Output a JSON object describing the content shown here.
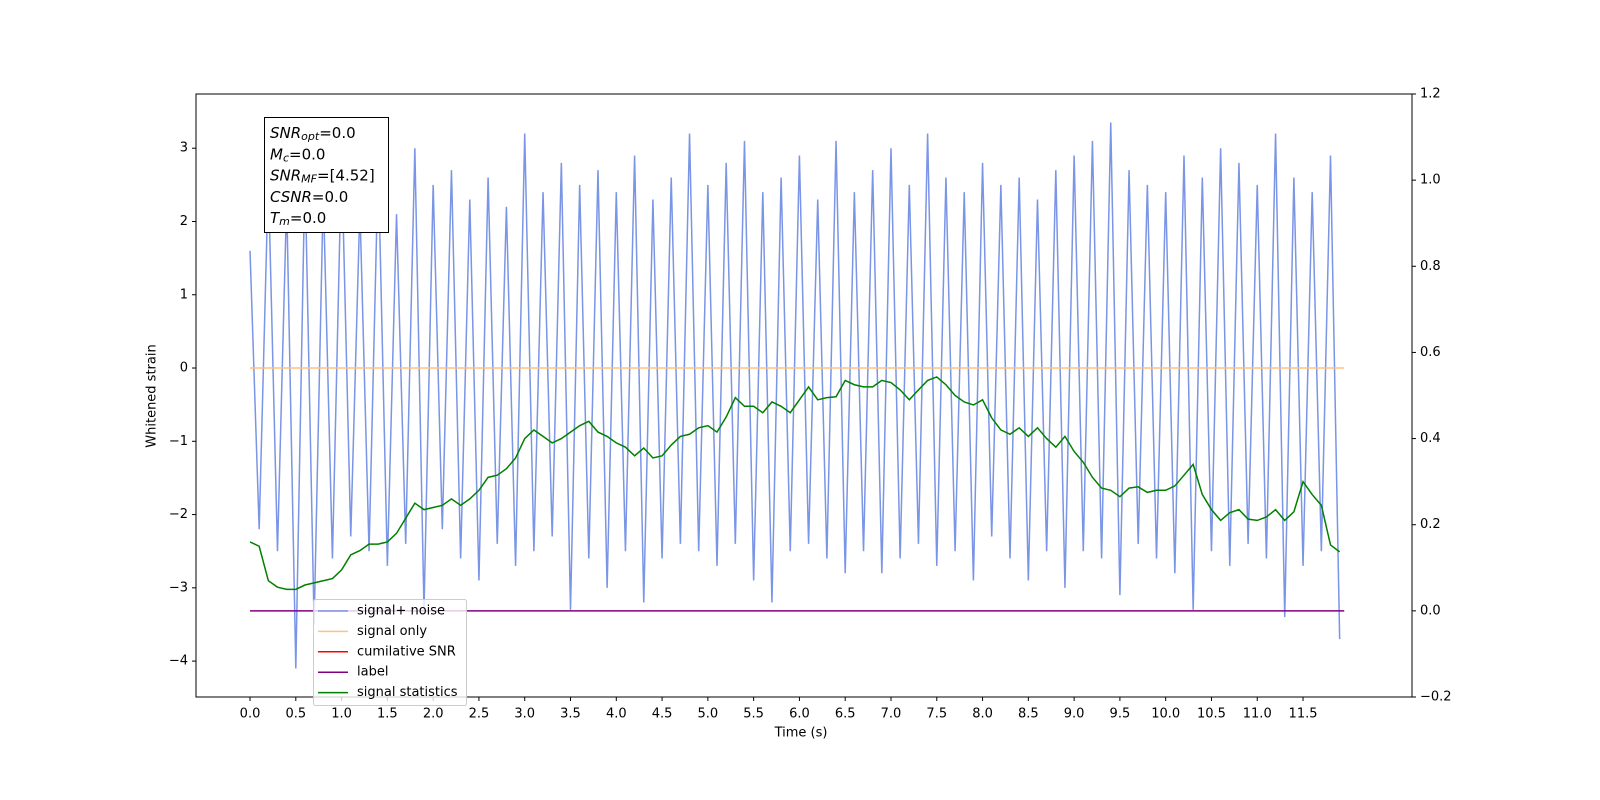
{
  "chart_data": {
    "type": "line",
    "x_label": "Time (s)",
    "y_label": "Whitened strain",
    "xlim": [
      -0.59,
      12.69
    ],
    "ylim": [
      -4.49,
      3.74
    ],
    "y2lim": [
      -0.2,
      1.2
    ],
    "xticks": [
      {
        "value": 0,
        "label": "0.0"
      },
      0.5,
      {
        "value": 1,
        "label": "1.0"
      },
      1.5,
      {
        "value": 2,
        "label": "2.0"
      },
      2.5,
      {
        "value": 3,
        "label": "3.0"
      },
      3.5,
      {
        "value": 4,
        "label": "4.0"
      },
      4.5,
      {
        "value": 5,
        "label": "5.0"
      },
      5.5,
      {
        "value": 6,
        "label": "6.0"
      },
      6.5,
      {
        "value": 7,
        "label": "7.0"
      },
      7.5,
      {
        "value": 8,
        "label": "8.0"
      },
      8.5,
      {
        "value": 9,
        "label": "9.0"
      },
      9.5,
      {
        "value": 10,
        "label": "10.0"
      },
      10.5,
      {
        "value": 11,
        "label": "11.0"
      },
      11.5
    ],
    "yticks": [
      {
        "value": -4,
        "label": "−4"
      },
      {
        "value": -3,
        "label": "−3"
      },
      {
        "value": -2,
        "label": "−2"
      },
      {
        "value": -1,
        "label": "−1"
      },
      0,
      1,
      2,
      3
    ],
    "y2ticks": [
      {
        "value": -0.2,
        "label": "−0.2"
      },
      {
        "value": 0,
        "label": "0.0"
      },
      0.2,
      0.4,
      0.6,
      0.8,
      {
        "value": 1,
        "label": "1.0"
      },
      1.2
    ],
    "x": [
      0,
      0.1,
      0.2,
      0.3,
      0.4,
      0.5,
      0.6,
      0.7,
      0.8,
      0.9,
      1,
      1.1,
      1.2,
      1.3,
      1.4,
      1.5,
      1.6,
      1.7,
      1.8,
      1.9,
      2,
      2.1,
      2.2,
      2.3,
      2.4,
      2.5,
      2.6,
      2.7,
      2.8,
      2.9,
      3,
      3.1,
      3.2,
      3.3,
      3.4,
      3.5,
      3.6,
      3.7,
      3.8,
      3.9,
      4,
      4.1,
      4.2,
      4.3,
      4.4,
      4.5,
      4.6,
      4.7,
      4.8,
      4.9,
      5,
      5.1,
      5.2,
      5.3,
      5.4,
      5.5,
      5.6,
      5.7,
      5.8,
      5.9,
      6,
      6.1,
      6.2,
      6.3,
      6.4,
      6.5,
      6.6,
      6.7,
      6.8,
      6.9,
      7,
      7.1,
      7.2,
      7.3,
      7.4,
      7.5,
      7.6,
      7.7,
      7.8,
      7.9,
      8,
      8.1,
      8.2,
      8.3,
      8.4,
      8.5,
      8.6,
      8.7,
      8.8,
      8.9,
      9,
      9.1,
      9.2,
      9.3,
      9.4,
      9.5,
      9.6,
      9.7,
      9.8,
      9.9,
      10,
      10.1,
      10.2,
      10.3,
      10.4,
      10.5,
      10.6,
      10.7,
      10.8,
      10.9,
      11,
      11.1,
      11.2,
      11.3,
      11.4,
      11.5,
      11.6,
      11.7,
      11.8,
      11.9
    ],
    "series": [
      {
        "name": "signal+ noise",
        "color": "#7a94e6",
        "values": [
          1.6,
          -2.2,
          2.6,
          -2.5,
          2.3,
          -4.1,
          2.7,
          -3.5,
          2.4,
          -2.6,
          2.9,
          -2.3,
          2.2,
          -2.5,
          2.8,
          -2.7,
          2.1,
          -2.4,
          3.0,
          -3.3,
          2.5,
          -2.2,
          2.7,
          -2.6,
          2.3,
          -2.9,
          2.6,
          -2.4,
          2.2,
          -2.7,
          3.2,
          -2.5,
          2.4,
          -2.3,
          2.8,
          -3.3,
          2.5,
          -2.6,
          2.7,
          -3.0,
          2.4,
          -2.5,
          2.9,
          -3.2,
          2.3,
          -2.6,
          2.6,
          -2.4,
          3.2,
          -2.5,
          2.5,
          -2.7,
          2.8,
          -2.4,
          3.1,
          -2.9,
          2.4,
          -3.2,
          2.6,
          -2.5,
          2.9,
          -2.4,
          2.3,
          -2.6,
          3.1,
          -2.8,
          2.4,
          -2.5,
          2.7,
          -2.8,
          3.0,
          -2.6,
          2.5,
          -2.4,
          3.2,
          -2.7,
          2.6,
          -2.5,
          2.4,
          -2.9,
          2.8,
          -2.3,
          2.5,
          -2.6,
          2.6,
          -2.9,
          2.3,
          -2.5,
          2.7,
          -3.0,
          2.9,
          -2.5,
          3.1,
          -2.6,
          3.35,
          -3.1,
          2.7,
          -2.4,
          2.5,
          -2.6,
          2.4,
          -2.8,
          2.9,
          -3.3,
          2.6,
          -2.5,
          3.0,
          -2.7,
          2.8,
          -2.4,
          2.5,
          -2.6,
          3.2,
          -3.4,
          2.6,
          -2.7,
          2.4,
          -2.5,
          2.9,
          -3.7
        ]
      },
      {
        "name": "signal only",
        "color": "#ffc080",
        "x": [
          0,
          11.95
        ],
        "values": [
          0,
          0
        ]
      },
      {
        "name": "cumilative SNR",
        "color": "#ff0000",
        "x": [],
        "values": []
      },
      {
        "name": "label",
        "color": "#800080",
        "axis": "y2",
        "x": [
          0,
          11.95
        ],
        "values": [
          0,
          0
        ]
      },
      {
        "name": "signal statistics",
        "color": "#008000",
        "axis": "y2",
        "values": [
          0.16,
          0.15,
          0.07,
          0.055,
          0.05,
          0.05,
          0.06,
          0.065,
          0.07,
          0.075,
          0.095,
          0.13,
          0.14,
          0.155,
          0.155,
          0.16,
          0.18,
          0.215,
          0.25,
          0.235,
          0.24,
          0.245,
          0.26,
          0.245,
          0.26,
          0.28,
          0.31,
          0.315,
          0.33,
          0.355,
          0.4,
          0.42,
          0.405,
          0.39,
          0.4,
          0.415,
          0.43,
          0.44,
          0.415,
          0.405,
          0.39,
          0.38,
          0.36,
          0.378,
          0.355,
          0.36,
          0.385,
          0.405,
          0.41,
          0.425,
          0.43,
          0.415,
          0.45,
          0.495,
          0.475,
          0.475,
          0.46,
          0.485,
          0.475,
          0.46,
          0.49,
          0.52,
          0.49,
          0.495,
          0.497,
          0.535,
          0.525,
          0.52,
          0.52,
          0.535,
          0.53,
          0.513,
          0.49,
          0.513,
          0.535,
          0.543,
          0.525,
          0.5,
          0.485,
          0.478,
          0.49,
          0.448,
          0.42,
          0.41,
          0.425,
          0.405,
          0.425,
          0.4,
          0.38,
          0.405,
          0.37,
          0.345,
          0.31,
          0.285,
          0.28,
          0.265,
          0.285,
          0.288,
          0.275,
          0.28,
          0.28,
          0.29,
          0.315,
          0.34,
          0.27,
          0.235,
          0.21,
          0.228,
          0.235,
          0.213,
          0.21,
          0.218,
          0.235,
          0.21,
          0.23,
          0.3,
          0.27,
          0.245,
          0.153,
          0.137
        ]
      }
    ],
    "annotation": [
      {
        "main": "SNR",
        "sub": "opt",
        "rest": "=0.0"
      },
      {
        "main": "M",
        "sub": "c",
        "rest": "=0.0"
      },
      {
        "main": "SNR",
        "sub": "MF",
        "rest": "=[4.52]"
      },
      {
        "main": "CSNR",
        "rest": "=0.0"
      },
      {
        "main": "T",
        "sub": "m",
        "rest": "=0.0"
      }
    ],
    "legend": "lower left"
  }
}
